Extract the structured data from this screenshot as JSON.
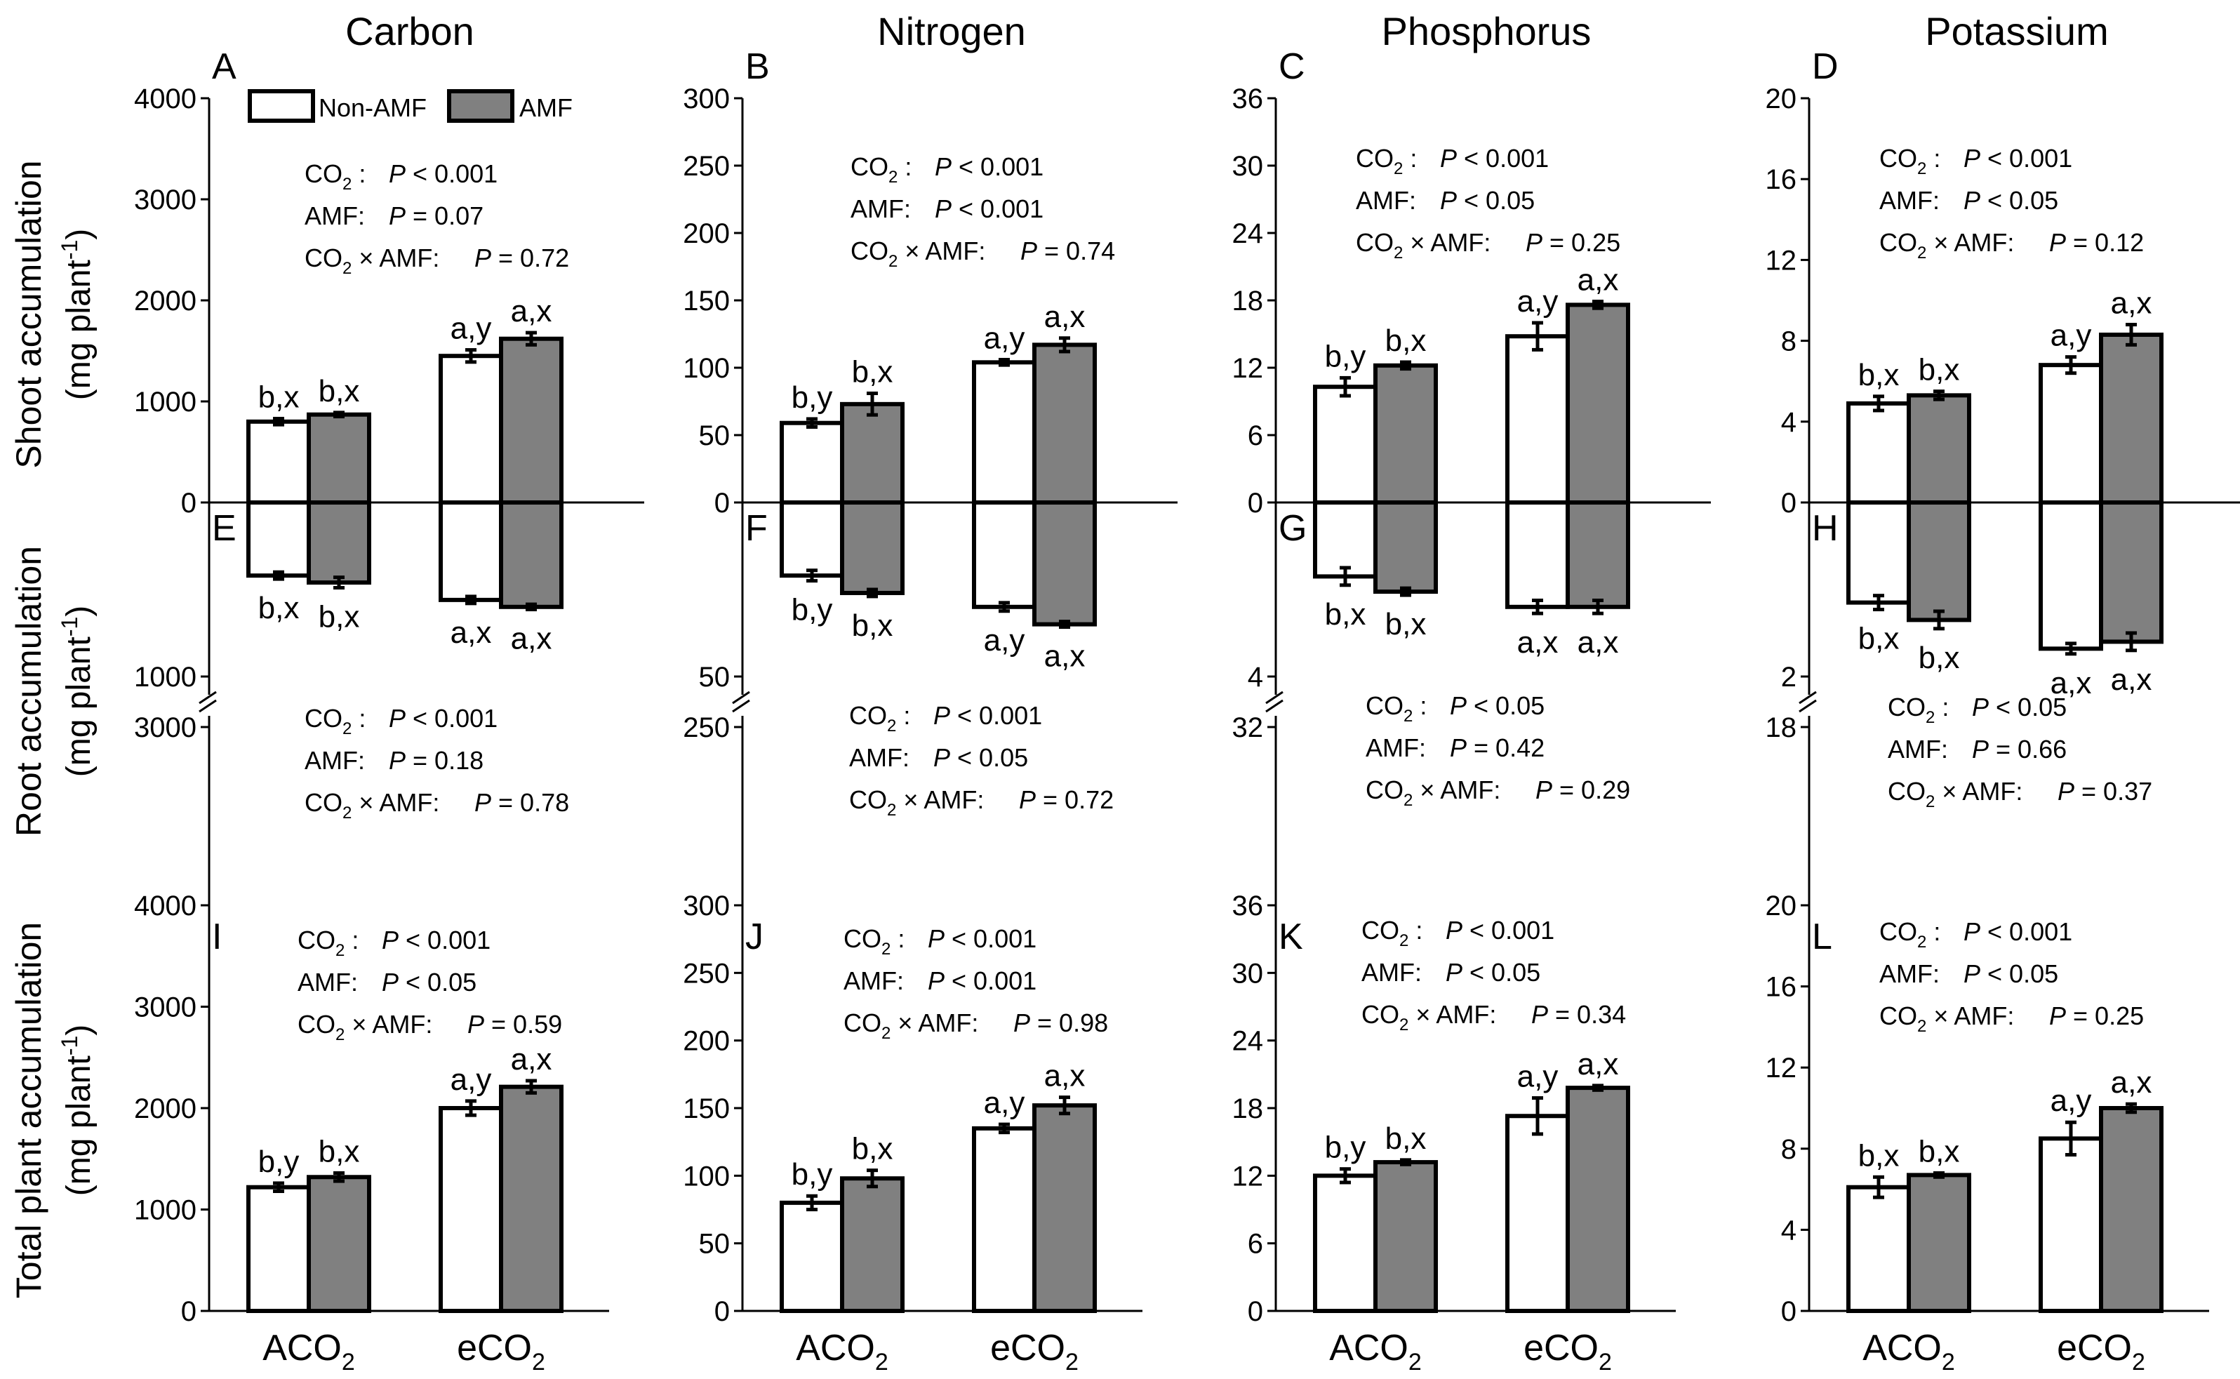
{
  "nutrients": [
    "Carbon",
    "Nitrogen",
    "Phosphorus",
    "Potassium"
  ],
  "row_titles": {
    "shoot": "Shoot accumulation",
    "root": "Root accumulation",
    "total": "Total plant accumulation",
    "unit_prefix": "(mg plant",
    "unit_sup": "-1",
    "unit_suffix": ")"
  },
  "x_categories": [
    {
      "base": "ACO",
      "sub": "2"
    },
    {
      "base": "eCO",
      "sub": "2"
    }
  ],
  "legend": {
    "non_amf": "Non-AMF",
    "amf": "AMF"
  },
  "colors": {
    "non_amf_fill": "#ffffff",
    "amf_fill": "#808080",
    "stroke": "#000000"
  },
  "stats_terms": {
    "co2": "CO",
    "co2_sub": "2",
    "co2_colon": " :",
    "amf": "AMF:",
    "interaction_mid": " × AMF:",
    "p": "P"
  },
  "chart_data": [
    {
      "type": "bar",
      "panel": "A",
      "nutrient": "Carbon",
      "part": "shoot",
      "categories": [
        "ACO2",
        "eCO2"
      ],
      "ylim": [
        0,
        4000
      ],
      "yticks": [
        "0",
        "1000",
        "2000",
        "3000",
        "4000"
      ],
      "series": [
        {
          "name": "Non-AMF",
          "values": [
            800,
            1450
          ],
          "errors": [
            30,
            60
          ],
          "letters": [
            "b,x",
            "a,y"
          ]
        },
        {
          "name": "AMF",
          "values": [
            870,
            1620
          ],
          "errors": [
            20,
            60
          ],
          "letters": [
            "b,x",
            "a,x"
          ]
        }
      ],
      "stats": [
        "< 0.001",
        "= 0.07",
        "= 0.72"
      ]
    },
    {
      "type": "bar",
      "panel": "B",
      "nutrient": "Nitrogen",
      "part": "shoot",
      "categories": [
        "ACO2",
        "eCO2"
      ],
      "ylim": [
        0,
        300
      ],
      "yticks": [
        "0",
        "50",
        "100",
        "150",
        "200",
        "250",
        "300"
      ],
      "series": [
        {
          "name": "Non-AMF",
          "values": [
            59,
            104
          ],
          "errors": [
            3,
            2
          ],
          "letters": [
            "b,y",
            "a,y"
          ]
        },
        {
          "name": "AMF",
          "values": [
            73,
            117
          ],
          "errors": [
            8,
            5
          ],
          "letters": [
            "b,x",
            "a,x"
          ]
        }
      ],
      "stats": [
        "< 0.001",
        "< 0.001",
        "= 0.74"
      ]
    },
    {
      "type": "bar",
      "panel": "C",
      "nutrient": "Phosphorus",
      "part": "shoot",
      "categories": [
        "ACO2",
        "eCO2"
      ],
      "ylim": [
        0,
        36
      ],
      "yticks": [
        "0",
        "6",
        "12",
        "18",
        "24",
        "30",
        "36"
      ],
      "series": [
        {
          "name": "Non-AMF",
          "values": [
            10.3,
            14.8
          ],
          "errors": [
            0.8,
            1.2
          ],
          "letters": [
            "b,y",
            "a,y"
          ]
        },
        {
          "name": "AMF",
          "values": [
            12.2,
            17.6
          ],
          "errors": [
            0.3,
            0.3
          ],
          "letters": [
            "b,x",
            "a,x"
          ]
        }
      ],
      "stats": [
        "< 0.001",
        "< 0.05",
        "= 0.25"
      ]
    },
    {
      "type": "bar",
      "panel": "D",
      "nutrient": "Potassium",
      "part": "shoot",
      "categories": [
        "ACO2",
        "eCO2"
      ],
      "ylim": [
        0,
        20
      ],
      "yticks": [
        "0",
        "4",
        "8",
        "12",
        "16",
        "20"
      ],
      "series": [
        {
          "name": "Non-AMF",
          "values": [
            4.9,
            6.8
          ],
          "errors": [
            0.35,
            0.4
          ],
          "letters": [
            "b,x",
            "a,y"
          ]
        },
        {
          "name": "AMF",
          "values": [
            5.3,
            8.3
          ],
          "errors": [
            0.2,
            0.5
          ],
          "letters": [
            "b,x",
            "a,x"
          ]
        }
      ],
      "stats": [
        "< 0.001",
        "< 0.05",
        "= 0.12"
      ]
    },
    {
      "type": "bar",
      "panel": "E",
      "nutrient": "Carbon",
      "part": "root",
      "categories": [
        "ACO2",
        "eCO2"
      ],
      "ylim": [
        0,
        1000
      ],
      "yticks": [
        "1000"
      ],
      "broken_tick": "3000",
      "series": [
        {
          "name": "Non-AMF",
          "values": [
            420,
            560
          ],
          "errors": [
            20,
            20
          ],
          "letters": [
            "b,x",
            "a,x"
          ]
        },
        {
          "name": "AMF",
          "values": [
            460,
            600
          ],
          "errors": [
            30,
            15
          ],
          "letters": [
            "b,x",
            "a,x"
          ]
        }
      ],
      "stats": [
        "< 0.001",
        "= 0.18",
        "= 0.78"
      ]
    },
    {
      "type": "bar",
      "panel": "F",
      "nutrient": "Nitrogen",
      "part": "root",
      "categories": [
        "ACO2",
        "eCO2"
      ],
      "ylim": [
        0,
        50
      ],
      "yticks": [
        "50"
      ],
      "broken_tick": "250",
      "series": [
        {
          "name": "Non-AMF",
          "values": [
            21,
            30
          ],
          "errors": [
            1.5,
            1.2
          ],
          "letters": [
            "b,y",
            "a,y"
          ]
        },
        {
          "name": "AMF",
          "values": [
            26,
            35
          ],
          "errors": [
            1,
            0.8
          ],
          "letters": [
            "b,x",
            "a,x"
          ]
        }
      ],
      "stats": [
        "< 0.001",
        "< 0.05",
        "= 0.72"
      ]
    },
    {
      "type": "bar",
      "panel": "G",
      "nutrient": "Phosphorus",
      "part": "root",
      "categories": [
        "ACO2",
        "eCO2"
      ],
      "ylim": [
        0,
        4
      ],
      "yticks": [
        "4"
      ],
      "broken_tick": "32",
      "series": [
        {
          "name": "Non-AMF",
          "values": [
            1.7,
            2.4
          ],
          "errors": [
            0.2,
            0.15
          ],
          "letters": [
            "b,x",
            "a,x"
          ]
        },
        {
          "name": "AMF",
          "values": [
            2.05,
            2.4
          ],
          "errors": [
            0.08,
            0.15
          ],
          "letters": [
            "b,x",
            "a,x"
          ]
        }
      ],
      "stats": [
        "< 0.05",
        "= 0.42",
        "= 0.29"
      ]
    },
    {
      "type": "bar",
      "panel": "H",
      "nutrient": "Potassium",
      "part": "root",
      "categories": [
        "ACO2",
        "eCO2"
      ],
      "ylim": [
        0,
        2
      ],
      "yticks": [
        "2"
      ],
      "broken_tick": "18",
      "series": [
        {
          "name": "Non-AMF",
          "values": [
            1.15,
            1.68
          ],
          "errors": [
            0.08,
            0.06
          ],
          "letters": [
            "b,x",
            "a,x"
          ]
        },
        {
          "name": "AMF",
          "values": [
            1.35,
            1.6
          ],
          "errors": [
            0.1,
            0.1
          ],
          "letters": [
            "b,x",
            "a,x"
          ]
        }
      ],
      "stats": [
        "< 0.05",
        "= 0.66",
        "= 0.37"
      ]
    },
    {
      "type": "bar",
      "panel": "I",
      "nutrient": "Carbon",
      "part": "total",
      "categories": [
        "ACO2",
        "eCO2"
      ],
      "ylim": [
        0,
        4000
      ],
      "yticks": [
        "0",
        "1000",
        "2000",
        "3000",
        "4000"
      ],
      "series": [
        {
          "name": "Non-AMF",
          "values": [
            1220,
            2000
          ],
          "errors": [
            40,
            70
          ],
          "letters": [
            "b,y",
            "a,y"
          ]
        },
        {
          "name": "AMF",
          "values": [
            1320,
            2210
          ],
          "errors": [
            40,
            60
          ],
          "letters": [
            "b,x",
            "a,x"
          ]
        }
      ],
      "stats": [
        "< 0.001",
        "< 0.05",
        "= 0.59"
      ]
    },
    {
      "type": "bar",
      "panel": "J",
      "nutrient": "Nitrogen",
      "part": "total",
      "categories": [
        "ACO2",
        "eCO2"
      ],
      "ylim": [
        0,
        300
      ],
      "yticks": [
        "0",
        "50",
        "100",
        "150",
        "200",
        "250",
        "300"
      ],
      "series": [
        {
          "name": "Non-AMF",
          "values": [
            80,
            135
          ],
          "errors": [
            5,
            3
          ],
          "letters": [
            "b,y",
            "a,y"
          ]
        },
        {
          "name": "AMF",
          "values": [
            98,
            152
          ],
          "errors": [
            6,
            6
          ],
          "letters": [
            "b,x",
            "a,x"
          ]
        }
      ],
      "stats": [
        "< 0.001",
        "< 0.001",
        "= 0.98"
      ]
    },
    {
      "type": "bar",
      "panel": "K",
      "nutrient": "Phosphorus",
      "part": "total",
      "categories": [
        "ACO2",
        "eCO2"
      ],
      "ylim": [
        0,
        36
      ],
      "yticks": [
        "0",
        "6",
        "12",
        "18",
        "24",
        "30",
        "36"
      ],
      "series": [
        {
          "name": "Non-AMF",
          "values": [
            12.0,
            17.3
          ],
          "errors": [
            0.6,
            1.6
          ],
          "letters": [
            "b,y",
            "a,y"
          ]
        },
        {
          "name": "AMF",
          "values": [
            13.2,
            19.8
          ],
          "errors": [
            0.2,
            0.2
          ],
          "letters": [
            "b,x",
            "a,x"
          ]
        }
      ],
      "stats": [
        "< 0.001",
        "< 0.05",
        "= 0.34"
      ]
    },
    {
      "type": "bar",
      "panel": "L",
      "nutrient": "Potassium",
      "part": "total",
      "categories": [
        "ACO2",
        "eCO2"
      ],
      "ylim": [
        0,
        20
      ],
      "yticks": [
        "0",
        "4",
        "8",
        "12",
        "16",
        "20"
      ],
      "series": [
        {
          "name": "Non-AMF",
          "values": [
            6.1,
            8.5
          ],
          "errors": [
            0.5,
            0.8
          ],
          "letters": [
            "b,x",
            "a,y"
          ]
        },
        {
          "name": "AMF",
          "values": [
            6.7,
            10.0
          ],
          "errors": [
            0.1,
            0.2
          ],
          "letters": [
            "b,x",
            "a,x"
          ]
        }
      ],
      "stats": [
        "< 0.001",
        "< 0.05",
        "= 0.25"
      ]
    }
  ]
}
